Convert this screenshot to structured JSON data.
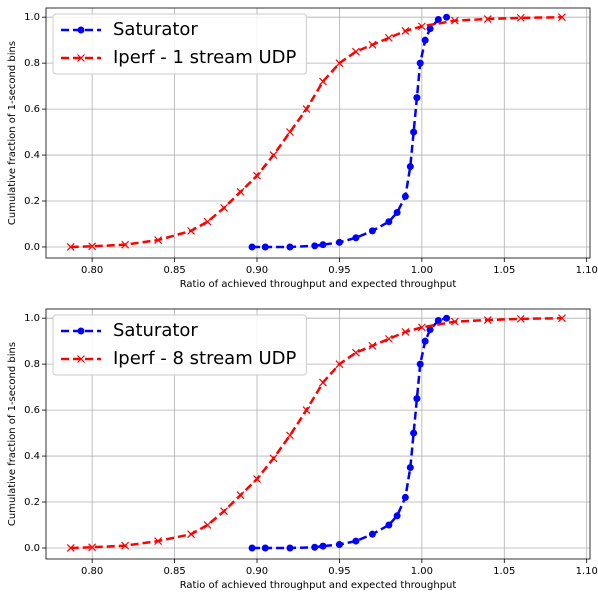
{
  "chart_data": [
    {
      "type": "line",
      "xlabel": "Ratio of achieved throughput and expected throughput",
      "ylabel": "Cumulative fraction of 1-second bins",
      "xlim": [
        0.772,
        1.102
      ],
      "ylim": [
        -0.048,
        1.04
      ],
      "xticks": [
        {
          "value": 0.8,
          "label": "0.80"
        },
        0.85,
        {
          "value": 0.9,
          "label": "0.90"
        },
        0.95,
        {
          "value": 1.0,
          "label": "1.00"
        },
        1.05,
        {
          "value": 1.1,
          "label": "1.10"
        }
      ],
      "yticks": [
        {
          "value": 0,
          "label": "0.0"
        },
        0.2,
        0.4,
        0.6,
        0.8,
        {
          "value": 1,
          "label": "1.0"
        }
      ],
      "grid": true,
      "legend": "upper left",
      "series": [
        {
          "name": "Saturator",
          "color": "#0000ff",
          "marker": "o",
          "x": [
            0.897,
            0.905,
            0.92,
            0.935,
            0.94,
            0.95,
            0.96,
            0.97,
            0.98,
            0.985,
            0.99,
            0.993,
            0.995,
            0.997,
            0.999,
            1.002,
            1.005,
            1.01,
            1.015
          ],
          "values": [
            0,
            0,
            0,
            0.005,
            0.01,
            0.02,
            0.04,
            0.07,
            0.11,
            0.15,
            0.22,
            0.35,
            0.5,
            0.65,
            0.8,
            0.9,
            0.95,
            0.99,
            1.0
          ]
        },
        {
          "name": "Iperf - 1 stream UDP",
          "color": "#ff0000",
          "marker": "x",
          "x": [
            0.787,
            0.8,
            0.82,
            0.84,
            0.86,
            0.87,
            0.88,
            0.89,
            0.9,
            0.91,
            0.92,
            0.93,
            0.94,
            0.95,
            0.96,
            0.97,
            0.98,
            0.99,
            1.0,
            1.02,
            1.04,
            1.06,
            1.085
          ],
          "values": [
            0,
            0.003,
            0.01,
            0.03,
            0.07,
            0.11,
            0.17,
            0.24,
            0.31,
            0.4,
            0.5,
            0.6,
            0.72,
            0.8,
            0.85,
            0.88,
            0.91,
            0.94,
            0.96,
            0.985,
            0.992,
            0.997,
            1.0
          ]
        }
      ]
    },
    {
      "type": "line",
      "xlabel": "Ratio of achieved throughput and expected throughput",
      "ylabel": "Cumulative fraction of 1-second bins",
      "xlim": [
        0.772,
        1.102
      ],
      "ylim": [
        -0.048,
        1.04
      ],
      "xticks": [
        {
          "value": 0.8,
          "label": "0.80"
        },
        0.85,
        {
          "value": 0.9,
          "label": "0.90"
        },
        0.95,
        {
          "value": 1.0,
          "label": "1.00"
        },
        1.05,
        {
          "value": 1.1,
          "label": "1.10"
        }
      ],
      "yticks": [
        {
          "value": 0,
          "label": "0.0"
        },
        0.2,
        0.4,
        0.6,
        0.8,
        {
          "value": 1,
          "label": "1.0"
        }
      ],
      "grid": true,
      "legend": "upper left",
      "series": [
        {
          "name": "Saturator",
          "color": "#0000ff",
          "marker": "o",
          "x": [
            0.897,
            0.905,
            0.92,
            0.935,
            0.94,
            0.95,
            0.96,
            0.97,
            0.98,
            0.985,
            0.99,
            0.993,
            0.995,
            0.997,
            0.999,
            1.002,
            1.005,
            1.01,
            1.015
          ],
          "values": [
            0,
            0,
            0,
            0.003,
            0.008,
            0.015,
            0.03,
            0.06,
            0.1,
            0.14,
            0.22,
            0.35,
            0.5,
            0.65,
            0.8,
            0.9,
            0.95,
            0.99,
            1.0
          ]
        },
        {
          "name": "Iperf - 8 stream UDP",
          "color": "#ff0000",
          "marker": "x",
          "x": [
            0.787,
            0.8,
            0.82,
            0.84,
            0.86,
            0.87,
            0.88,
            0.89,
            0.9,
            0.91,
            0.92,
            0.93,
            0.94,
            0.95,
            0.96,
            0.97,
            0.98,
            0.99,
            1.0,
            1.02,
            1.04,
            1.06,
            1.085
          ],
          "values": [
            0,
            0.003,
            0.01,
            0.03,
            0.06,
            0.1,
            0.16,
            0.23,
            0.3,
            0.39,
            0.49,
            0.6,
            0.72,
            0.8,
            0.85,
            0.88,
            0.91,
            0.94,
            0.96,
            0.985,
            0.992,
            0.997,
            1.0
          ]
        }
      ]
    }
  ]
}
